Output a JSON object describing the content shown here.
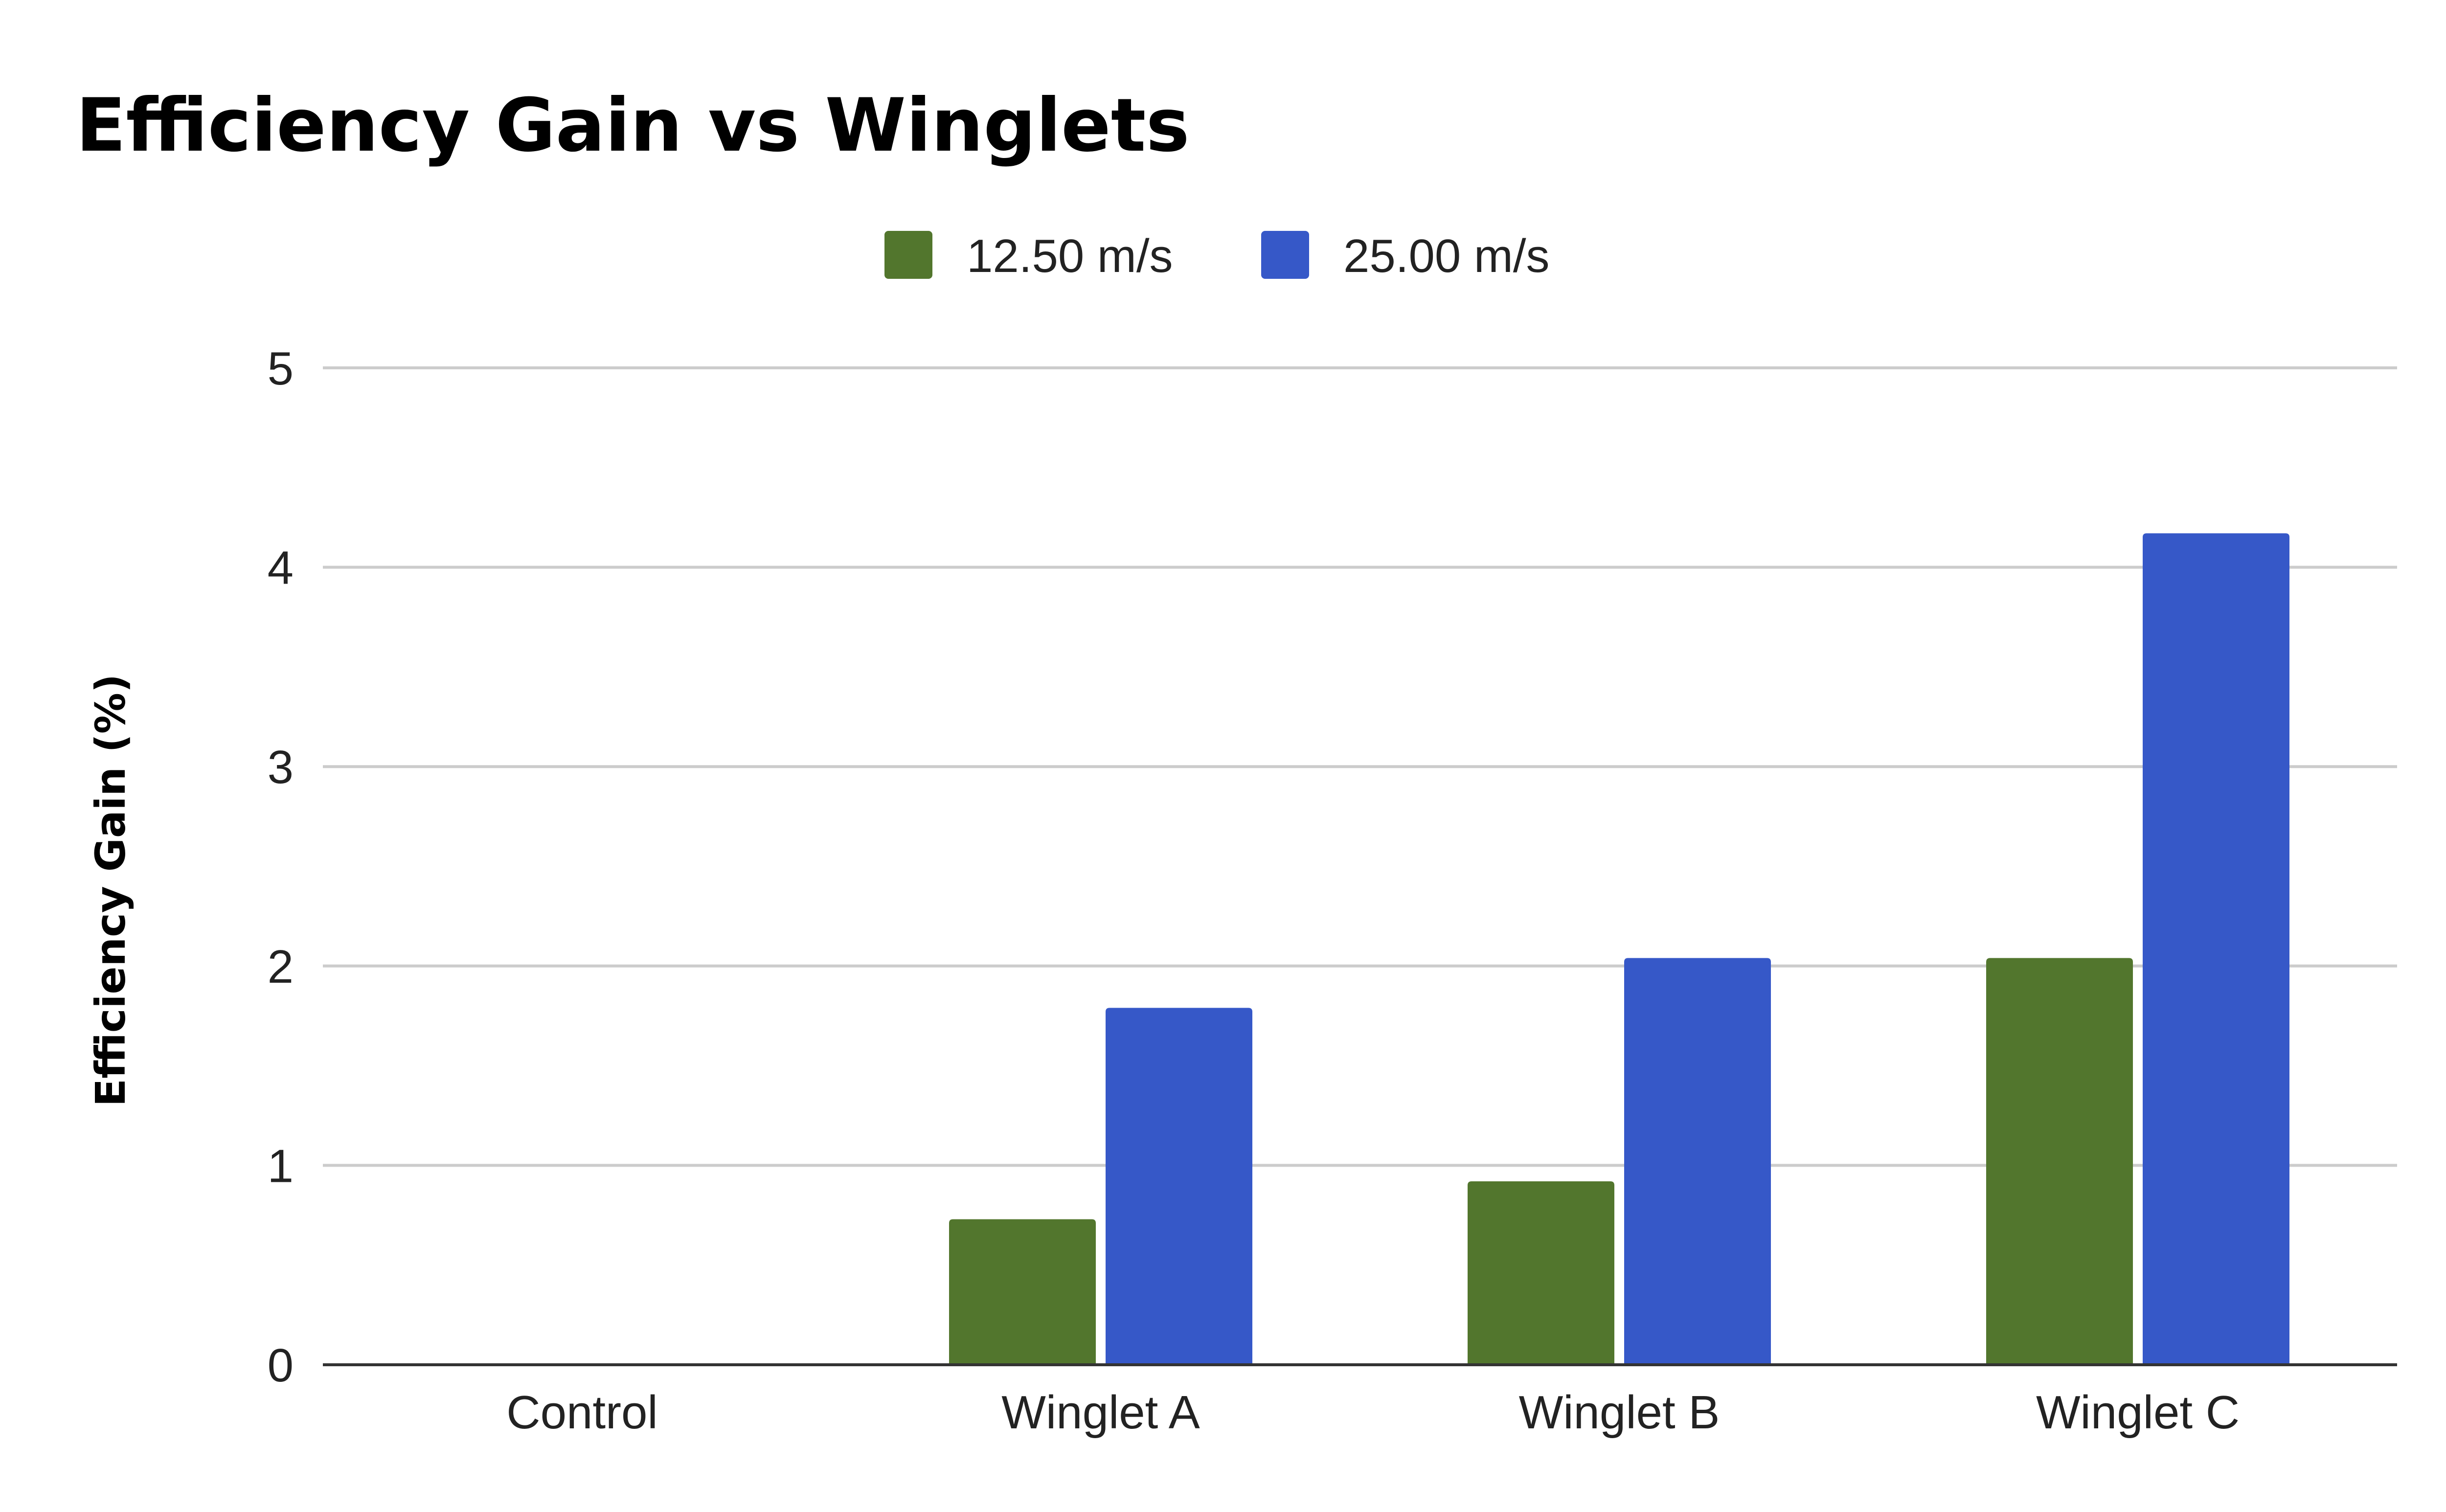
{
  "chart_data": {
    "type": "bar",
    "title": "Efficiency Gain vs Winglets",
    "ylabel": "Efficiency Gain (%)",
    "xlabel": "",
    "categories": [
      "Control",
      "Winglet A",
      "Winglet B",
      "Winglet C"
    ],
    "series": [
      {
        "name": "12.50 m/s",
        "color": "#52762d",
        "values": [
          0,
          0.73,
          0.92,
          2.04
        ]
      },
      {
        "name": "25.00 m/s",
        "color": "#3658c8",
        "values": [
          0,
          1.79,
          2.04,
          4.17
        ]
      }
    ],
    "ylim": [
      0,
      5
    ],
    "yticks": [
      "0",
      "1",
      "2",
      "3",
      "4",
      "5"
    ],
    "grid": true,
    "legend_position": "top-center"
  }
}
